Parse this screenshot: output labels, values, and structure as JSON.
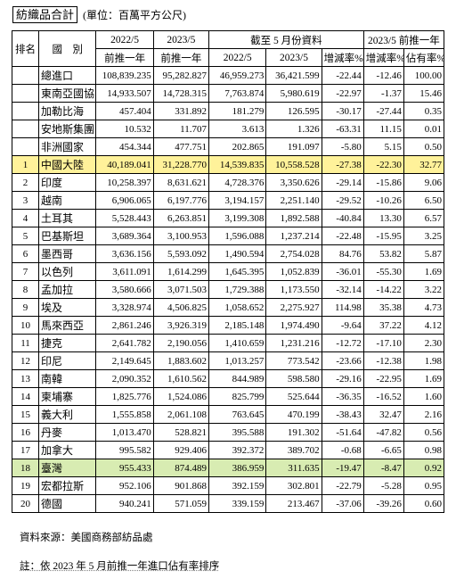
{
  "title": "紡織品合計",
  "unit": "(單位：百萬平方公尺)",
  "headers": {
    "rank": "排名",
    "country": "國　別",
    "y2022_top": "2022/5",
    "y2022_bottom": "前推一年",
    "y2023_top": "2023/5",
    "y2023_bottom": "前推一年",
    "ytd_group": "截至 5 月份資料",
    "ytd_2022": "2022/5",
    "ytd_2023": "2023/5",
    "ytd_growth": "增減率%",
    "ttm_group": "2023/5 前推一年",
    "ttm_growth": "增減率%",
    "ttm_share": "佔有率%"
  },
  "rows": [
    {
      "rank": "",
      "name": "總進口",
      "a": "108,839.235",
      "b": "95,282.827",
      "c": "46,959.273",
      "d": "36,421.599",
      "e": "-22.44",
      "f": "-12.46",
      "g": "100.00",
      "hl": ""
    },
    {
      "rank": "",
      "name": "東南亞國協",
      "a": "14,933.507",
      "b": "14,728.315",
      "c": "7,763.874",
      "d": "5,980.619",
      "e": "-22.97",
      "f": "-1.37",
      "g": "15.46",
      "hl": ""
    },
    {
      "rank": "",
      "name": "加勒比海",
      "a": "457.404",
      "b": "331.892",
      "c": "181.279",
      "d": "126.595",
      "e": "-30.17",
      "f": "-27.44",
      "g": "0.35",
      "hl": ""
    },
    {
      "rank": "",
      "name": "安地斯集團",
      "a": "10.532",
      "b": "11.707",
      "c": "3.613",
      "d": "1.326",
      "e": "-63.31",
      "f": "11.15",
      "g": "0.01",
      "hl": ""
    },
    {
      "rank": "",
      "name": "非洲國家",
      "a": "454.344",
      "b": "477.751",
      "c": "202.865",
      "d": "191.097",
      "e": "-5.80",
      "f": "5.15",
      "g": "0.50",
      "hl": ""
    },
    {
      "rank": "1",
      "name": "中國大陸",
      "a": "40,189.041",
      "b": "31,228.770",
      "c": "14,539.835",
      "d": "10,558.528",
      "e": "-27.38",
      "f": "-22.30",
      "g": "32.77",
      "hl": "yellow"
    },
    {
      "rank": "2",
      "name": "印度",
      "a": "10,258.397",
      "b": "8,631.621",
      "c": "4,728.376",
      "d": "3,350.626",
      "e": "-29.14",
      "f": "-15.86",
      "g": "9.06",
      "hl": ""
    },
    {
      "rank": "3",
      "name": "越南",
      "a": "6,906.065",
      "b": "6,197.776",
      "c": "3,194.157",
      "d": "2,251.140",
      "e": "-29.52",
      "f": "-10.26",
      "g": "6.50",
      "hl": ""
    },
    {
      "rank": "4",
      "name": "土耳其",
      "a": "5,528.443",
      "b": "6,263.851",
      "c": "3,199.308",
      "d": "1,892.588",
      "e": "-40.84",
      "f": "13.30",
      "g": "6.57",
      "hl": ""
    },
    {
      "rank": "5",
      "name": "巴基斯坦",
      "a": "3,689.364",
      "b": "3,100.953",
      "c": "1,596.088",
      "d": "1,237.214",
      "e": "-22.48",
      "f": "-15.95",
      "g": "3.25",
      "hl": ""
    },
    {
      "rank": "6",
      "name": "墨西哥",
      "a": "3,636.156",
      "b": "5,593.092",
      "c": "1,490.594",
      "d": "2,754.028",
      "e": "84.76",
      "f": "53.82",
      "g": "5.87",
      "hl": ""
    },
    {
      "rank": "7",
      "name": "以色列",
      "a": "3,611.091",
      "b": "1,614.299",
      "c": "1,645.395",
      "d": "1,052.839",
      "e": "-36.01",
      "f": "-55.30",
      "g": "1.69",
      "hl": ""
    },
    {
      "rank": "8",
      "name": "孟加拉",
      "a": "3,580.666",
      "b": "3,071.503",
      "c": "1,729.388",
      "d": "1,173.550",
      "e": "-32.14",
      "f": "-14.22",
      "g": "3.22",
      "hl": ""
    },
    {
      "rank": "9",
      "name": "埃及",
      "a": "3,328.974",
      "b": "4,506.825",
      "c": "1,058.652",
      "d": "2,275.927",
      "e": "114.98",
      "f": "35.38",
      "g": "4.73",
      "hl": ""
    },
    {
      "rank": "10",
      "name": "馬來西亞",
      "a": "2,861.246",
      "b": "3,926.319",
      "c": "2,185.148",
      "d": "1,974.490",
      "e": "-9.64",
      "f": "37.22",
      "g": "4.12",
      "hl": ""
    },
    {
      "rank": "11",
      "name": "捷克",
      "a": "2,641.782",
      "b": "2,190.056",
      "c": "1,410.659",
      "d": "1,231.216",
      "e": "-12.72",
      "f": "-17.10",
      "g": "2.30",
      "hl": ""
    },
    {
      "rank": "12",
      "name": "印尼",
      "a": "2,149.645",
      "b": "1,883.602",
      "c": "1,013.257",
      "d": "773.542",
      "e": "-23.66",
      "f": "-12.38",
      "g": "1.98",
      "hl": ""
    },
    {
      "rank": "13",
      "name": "南韓",
      "a": "2,090.352",
      "b": "1,610.562",
      "c": "844.989",
      "d": "598.580",
      "e": "-29.16",
      "f": "-22.95",
      "g": "1.69",
      "hl": ""
    },
    {
      "rank": "14",
      "name": "柬埔寨",
      "a": "1,825.776",
      "b": "1,524.086",
      "c": "825.799",
      "d": "525.644",
      "e": "-36.35",
      "f": "-16.52",
      "g": "1.60",
      "hl": ""
    },
    {
      "rank": "15",
      "name": "義大利",
      "a": "1,555.858",
      "b": "2,061.108",
      "c": "763.645",
      "d": "470.199",
      "e": "-38.43",
      "f": "32.47",
      "g": "2.16",
      "hl": ""
    },
    {
      "rank": "16",
      "name": "丹麥",
      "a": "1,013.470",
      "b": "528.821",
      "c": "395.588",
      "d": "191.302",
      "e": "-51.64",
      "f": "-47.82",
      "g": "0.56",
      "hl": ""
    },
    {
      "rank": "17",
      "name": "加拿大",
      "a": "995.582",
      "b": "929.406",
      "c": "392.372",
      "d": "389.702",
      "e": "-0.68",
      "f": "-6.65",
      "g": "0.98",
      "hl": ""
    },
    {
      "rank": "18",
      "name": "臺灣",
      "a": "955.433",
      "b": "874.489",
      "c": "386.959",
      "d": "311.635",
      "e": "-19.47",
      "f": "-8.47",
      "g": "0.92",
      "hl": "green"
    },
    {
      "rank": "19",
      "name": "宏都拉斯",
      "a": "952.106",
      "b": "901.868",
      "c": "392.159",
      "d": "302.801",
      "e": "-22.79",
      "f": "-5.28",
      "g": "0.95",
      "hl": ""
    },
    {
      "rank": "20",
      "name": "德國",
      "a": "940.241",
      "b": "571.059",
      "c": "339.159",
      "d": "213.467",
      "e": "-37.06",
      "f": "-39.26",
      "g": "0.60",
      "hl": ""
    }
  ],
  "notes": {
    "source": "資料來源：美國商務部紡品處",
    "note": "註：依 2023 年 5 月前推一年進口佔有率排序"
  }
}
